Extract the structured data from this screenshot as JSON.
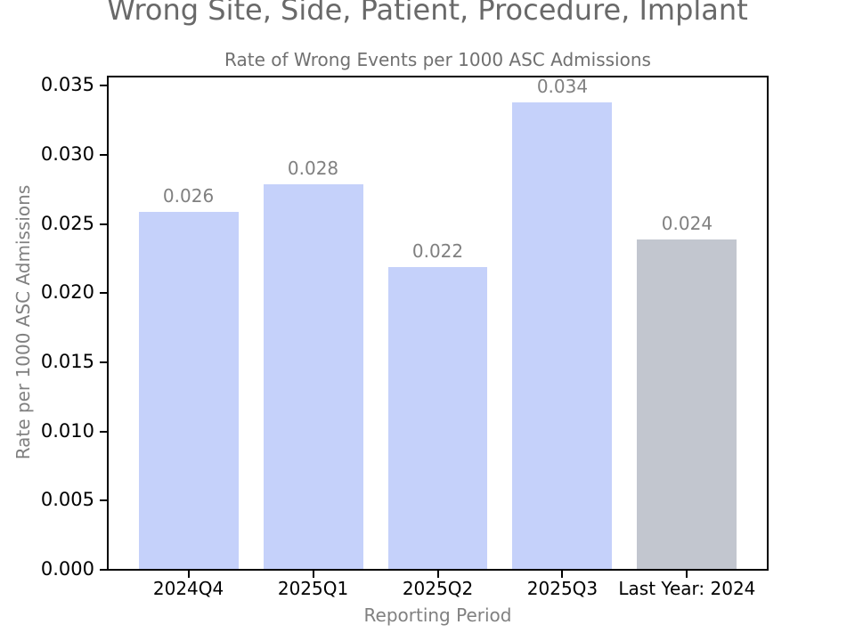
{
  "chart_data": {
    "type": "bar",
    "title": "Wrong Site, Side, Patient, Procedure, Implant",
    "subtitle": "Rate of Wrong Events per 1000 ASC Admissions",
    "categories": [
      "2024Q4",
      "2025Q1",
      "2025Q2",
      "2025Q3",
      "Last Year: 2024"
    ],
    "values": [
      0.026,
      0.028,
      0.022,
      0.034,
      0.024
    ],
    "value_labels": [
      "0.026",
      "0.028",
      "0.022",
      "0.034",
      "0.024"
    ],
    "bar_colors": [
      "#c5d1fa",
      "#c5d1fa",
      "#c5d1fa",
      "#c5d1fa",
      "#c2c6cf"
    ],
    "xlabel": "Reporting Period",
    "ylabel": "Rate per 1000 ASC Admissions",
    "ylim": [
      0,
      0.0358
    ],
    "xlim": [
      -0.64,
      4.64
    ],
    "bar_width": 0.8,
    "yticks": [
      0,
      0.005,
      0.01,
      0.015,
      0.02,
      0.025,
      0.03,
      0.035
    ],
    "ytick_labels": [
      "0.000",
      "0.005",
      "0.010",
      "0.015",
      "0.020",
      "0.025",
      "0.030",
      "0.035"
    ],
    "grid": false,
    "legend": null,
    "colors": {
      "bar_default": "#c5d1fa",
      "bar_comparison": "#c2c6cf",
      "title_text": "#696969",
      "subtitle_text": "#707070",
      "axis_label_text": "#808080",
      "value_label_text": "#808080",
      "tick_label_text": "#000000",
      "spine": "#000000",
      "background": "#ffffff"
    }
  }
}
